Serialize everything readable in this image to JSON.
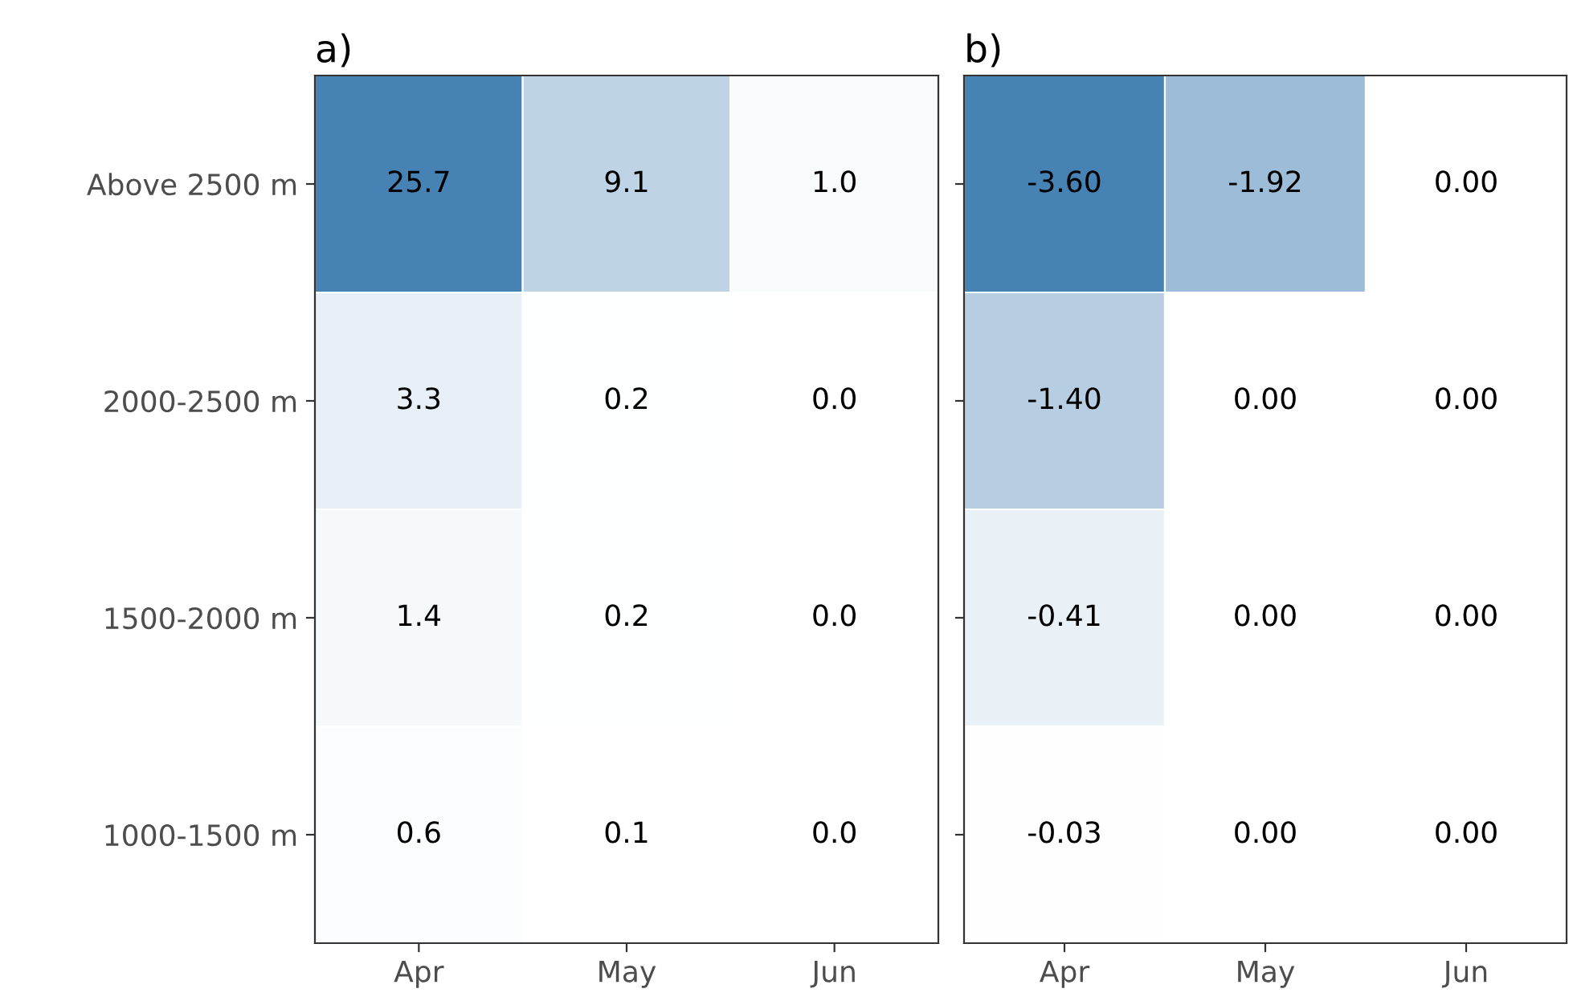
{
  "chart_data": [
    {
      "type": "heatmap",
      "title": "a)",
      "categories": [
        "Apr",
        "May",
        "Jun"
      ],
      "y_categories": [
        "Above 2500 m",
        "2000-2500 m",
        "1500-2000 m",
        "1000-1500 m"
      ],
      "cells": [
        [
          25.7,
          9.1,
          1.0
        ],
        [
          3.3,
          0.2,
          0.0
        ],
        [
          1.4,
          0.2,
          0.0
        ],
        [
          0.6,
          0.1,
          0.0
        ]
      ],
      "cell_labels": [
        [
          "25.7",
          "9.1",
          "1.0"
        ],
        [
          "3.3",
          "0.2",
          "0.0"
        ],
        [
          "1.4",
          "0.2",
          "0.0"
        ],
        [
          "0.6",
          "0.1",
          "0.0"
        ]
      ],
      "tick_labels": true
    },
    {
      "type": "heatmap",
      "title": "b)",
      "categories": [
        "Apr",
        "May",
        "Jun"
      ],
      "y_categories": [
        null,
        null,
        null,
        null
      ],
      "cells": [
        [
          -3.6,
          -1.92,
          0.0
        ],
        [
          -1.4,
          0.0,
          0.0
        ],
        [
          -0.41,
          0.0,
          0.0
        ],
        [
          -0.03,
          0.0,
          0.0
        ]
      ],
      "cell_labels": [
        [
          "-3.60",
          "-1.92",
          "0.00"
        ],
        [
          "-1.40",
          "0.00",
          "0.00"
        ],
        [
          "-0.41",
          "0.00",
          "0.00"
        ],
        [
          "-0.03",
          "0.00",
          "0.00"
        ]
      ],
      "tick_labels": "x"
    }
  ]
}
